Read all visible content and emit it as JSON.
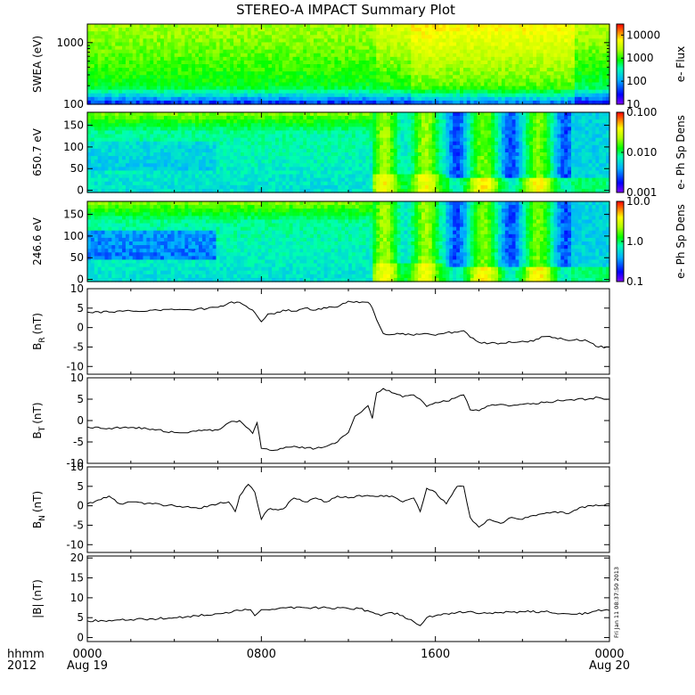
{
  "title": "STEREO-A IMPACT Summary Plot",
  "stamp": "Fri Jan 11 08:37:50 2013",
  "time_axis": {
    "row_label": "hhmm",
    "year_label": "2012",
    "ticks": [
      {
        "label": "0000",
        "sublabel": "Aug 19",
        "hour": 0
      },
      {
        "label": "0800",
        "sublabel": "",
        "hour": 8
      },
      {
        "label": "1600",
        "sublabel": "",
        "hour": 16
      },
      {
        "label": "0000",
        "sublabel": "Aug 20",
        "hour": 24
      }
    ]
  },
  "chart_data": [
    {
      "type": "heatmap",
      "ylabel": "SWEA (eV)",
      "ylog": true,
      "yrange": [
        100,
        2000
      ],
      "yticks": [
        {
          "v": 100,
          "label": "100"
        },
        {
          "v": 1000,
          "label": "1000"
        }
      ],
      "colorbar_label": "e- Flux",
      "colorbar_log": true,
      "colorbar_range": [
        10,
        30000
      ],
      "colorbar_ticks": [
        {
          "v": 10,
          "label": "10"
        },
        {
          "v": 100,
          "label": "100"
        },
        {
          "v": 1000,
          "label": "1000"
        },
        {
          "v": 10000,
          "label": "10000"
        }
      ]
    },
    {
      "type": "heatmap",
      "ylabel": "650.7 eV",
      "ylog": false,
      "yrange": [
        -5,
        180
      ],
      "yticks": [
        {
          "v": 0,
          "label": "0"
        },
        {
          "v": 50,
          "label": "50"
        },
        {
          "v": 100,
          "label": "100"
        },
        {
          "v": 150,
          "label": "150"
        }
      ],
      "colorbar_label": "e- Ph Sp Dens",
      "colorbar_log": true,
      "colorbar_range": [
        0.001,
        0.1
      ],
      "colorbar_ticks": [
        {
          "v": 0.001,
          "label": "0.001"
        },
        {
          "v": 0.01,
          "label": "0.010"
        },
        {
          "v": 0.1,
          "label": "0.100"
        }
      ]
    },
    {
      "type": "heatmap",
      "ylabel": "246.6 eV",
      "ylog": false,
      "yrange": [
        -5,
        180
      ],
      "yticks": [
        {
          "v": 0,
          "label": "0"
        },
        {
          "v": 50,
          "label": "50"
        },
        {
          "v": 100,
          "label": "100"
        },
        {
          "v": 150,
          "label": "150"
        }
      ],
      "colorbar_label": "e- Ph Sp Dens",
      "colorbar_log": true,
      "colorbar_range": [
        0.1,
        10
      ],
      "colorbar_ticks": [
        {
          "v": 0.1,
          "label": "0.1"
        },
        {
          "v": 1,
          "label": "1.0"
        },
        {
          "v": 10,
          "label": "10.0"
        }
      ]
    },
    {
      "type": "line",
      "ylabel": "B",
      "ylabel_sub": "R",
      "ylabel_unit": "(nT)",
      "yrange": [
        -12,
        10
      ],
      "yticks": [
        {
          "v": -10,
          "label": "-10"
        },
        {
          "v": -5,
          "label": "-5"
        },
        {
          "v": 0,
          "label": "0"
        },
        {
          "v": 5,
          "label": "5"
        },
        {
          "v": 10,
          "label": "10"
        }
      ],
      "x": [
        0,
        1,
        2,
        3,
        4,
        5,
        6,
        6.5,
        7,
        7.3,
        7.6,
        7.8,
        8.0,
        8.3,
        8.6,
        9.0,
        9.5,
        10,
        10.5,
        11,
        11.5,
        12,
        12.5,
        12.9,
        13.1,
        13.3,
        13.6,
        14,
        14.5,
        15,
        15.5,
        16,
        16.5,
        17,
        17.3,
        17.6,
        18,
        18.5,
        19,
        19.5,
        20,
        20.5,
        21,
        21.5,
        22,
        22.5,
        23,
        23.5,
        24
      ],
      "values": [
        4,
        4,
        4.3,
        4.5,
        4.6,
        4.7,
        5.2,
        6.3,
        6.5,
        5.5,
        4.5,
        3,
        1.5,
        3.5,
        3.5,
        4.5,
        4.2,
        5,
        4.5,
        5,
        5.3,
        6.8,
        6.4,
        6.5,
        5,
        2,
        -1.5,
        -1.8,
        -1.5,
        -2,
        -1.5,
        -2,
        -1.3,
        -1.2,
        -0.8,
        -2.5,
        -3.8,
        -4,
        -4,
        -3.8,
        -3.5,
        -3.5,
        -2.3,
        -2.6,
        -3.2,
        -3,
        -3.5,
        -5,
        -5
      ]
    },
    {
      "type": "line",
      "ylabel": "B",
      "ylabel_sub": "T",
      "ylabel_unit": "(nT)",
      "yrange": [
        -10,
        10
      ],
      "yticks": [
        {
          "v": -10,
          "label": "-10"
        },
        {
          "v": -5,
          "label": "-5"
        },
        {
          "v": 0,
          "label": "0"
        },
        {
          "v": 5,
          "label": "5"
        },
        {
          "v": 10,
          "label": "10"
        }
      ],
      "x": [
        0,
        1,
        2,
        3,
        4,
        5,
        6,
        6.5,
        7,
        7.3,
        7.6,
        7.8,
        8.0,
        8.5,
        9,
        9.5,
        10,
        10.5,
        11,
        11.5,
        12,
        12.3,
        12.6,
        12.9,
        13.1,
        13.3,
        13.6,
        14,
        14.5,
        15,
        15.3,
        15.6,
        16,
        16.5,
        17,
        17.3,
        17.6,
        18,
        18.5,
        19,
        19.5,
        20,
        20.5,
        21,
        21.5,
        22,
        22.5,
        23,
        23.5,
        24
      ],
      "values": [
        -1.5,
        -1.8,
        -1.6,
        -2,
        -2.8,
        -2.5,
        -2.2,
        -0.5,
        0,
        -1.5,
        -3,
        -0.5,
        -6.5,
        -7,
        -6.5,
        -6,
        -6.5,
        -6.5,
        -6,
        -5,
        -2.8,
        1,
        2,
        3.5,
        0.5,
        6.5,
        7.5,
        6.5,
        5.5,
        6,
        5,
        3.3,
        4.2,
        4.5,
        5.5,
        6,
        2.5,
        2.3,
        3.5,
        3.8,
        3.5,
        3.8,
        4,
        4.2,
        4.5,
        4.8,
        5,
        5,
        5.4,
        5
      ]
    },
    {
      "type": "line",
      "ylabel": "B",
      "ylabel_sub": "N",
      "ylabel_unit": "(nT)",
      "yrange": [
        -12,
        10
      ],
      "yticks": [
        {
          "v": -10,
          "label": "-10"
        },
        {
          "v": -5,
          "label": "-5"
        },
        {
          "v": 0,
          "label": "0"
        },
        {
          "v": 5,
          "label": "5"
        },
        {
          "v": 10,
          "label": "10"
        }
      ],
      "x": [
        0,
        0.5,
        1,
        1.5,
        2,
        3,
        4,
        5,
        5.5,
        6,
        6.5,
        6.8,
        7.0,
        7.4,
        7.7,
        8.0,
        8.3,
        9,
        9.5,
        10,
        10.5,
        11,
        11.5,
        12,
        12.5,
        13,
        13.5,
        14,
        14.5,
        15,
        15.3,
        15.6,
        16,
        16.5,
        17,
        17.3,
        17.6,
        18,
        18.5,
        19,
        19.5,
        20,
        20.5,
        21,
        21.5,
        22,
        22.5,
        23,
        23.5,
        24
      ],
      "values": [
        0.5,
        1.5,
        2.5,
        0.5,
        1,
        0.5,
        0,
        -0.5,
        -0.3,
        0.5,
        1,
        -1.5,
        2.5,
        5.5,
        3.5,
        -3.5,
        -1,
        -0.8,
        2,
        1,
        2,
        1,
        2.5,
        2,
        2.7,
        2.5,
        2.7,
        2.5,
        1,
        2,
        -1.5,
        4.5,
        3.5,
        0.5,
        5,
        5,
        -3,
        -5.5,
        -3.5,
        -4.5,
        -3,
        -3.5,
        -2.5,
        -2,
        -1.5,
        -2,
        -1,
        0,
        0,
        0.5
      ]
    },
    {
      "type": "line",
      "ylabel": "|B|",
      "ylabel_sub": "",
      "ylabel_unit": "(nT)",
      "yrange": [
        -1,
        20.5
      ],
      "yticks": [
        {
          "v": 0,
          "label": "0"
        },
        {
          "v": 5,
          "label": "5"
        },
        {
          "v": 10,
          "label": "10"
        },
        {
          "v": 15,
          "label": "15"
        },
        {
          "v": 20,
          "label": "20"
        }
      ],
      "x": [
        0,
        1,
        2,
        3,
        4,
        5,
        6,
        7,
        7.5,
        7.7,
        8,
        9,
        10,
        11,
        12,
        12.5,
        13,
        13.5,
        14,
        14.5,
        15,
        15.3,
        15.6,
        16,
        16.5,
        17,
        17.5,
        18,
        19,
        20,
        21,
        22,
        23,
        23.5,
        24
      ],
      "values": [
        4.2,
        4.3,
        4.5,
        4.7,
        5,
        5.5,
        6,
        6.8,
        7,
        5.5,
        7,
        7.5,
        7.5,
        7.5,
        7.3,
        7.3,
        6.5,
        5.5,
        6.3,
        5.5,
        4,
        3,
        5,
        5.5,
        6,
        6.3,
        6.5,
        6,
        6.3,
        6.5,
        6.5,
        6,
        6,
        7,
        6.8
      ]
    }
  ],
  "colors": {
    "colormap": [
      "#8000ff",
      "#0000ff",
      "#00b0ff",
      "#00ffb0",
      "#00ff00",
      "#b0ff00",
      "#ffff00",
      "#ff8000",
      "#ff0000"
    ]
  }
}
